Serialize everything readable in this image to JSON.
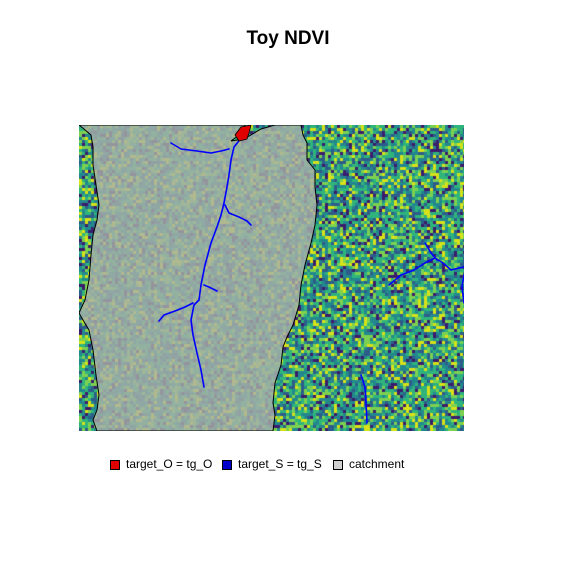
{
  "title": "Toy NDVI",
  "legend": [
    {
      "label": "target_O = tg_O",
      "color": "#e00000"
    },
    {
      "label": "target_S = tg_S",
      "color": "#0000cc"
    },
    {
      "label": "catchment",
      "color": "#d0d0d0"
    }
  ],
  "colors": {
    "ndvi_palette": [
      "#3b1b6b",
      "#2e5c8a",
      "#23888e",
      "#2fb47c",
      "#7cd250",
      "#d8e219"
    ],
    "catchment_fill": "#a8b0a8",
    "stream": "#0000ff",
    "outlet": "#e00000"
  }
}
